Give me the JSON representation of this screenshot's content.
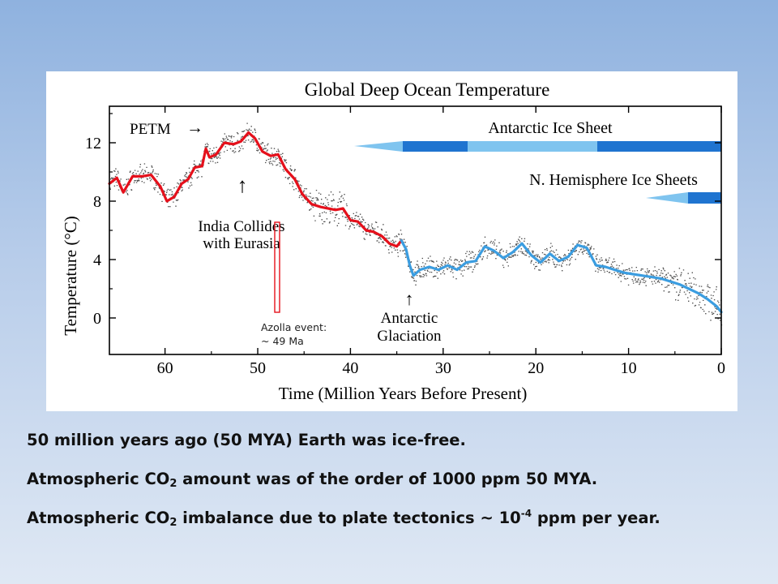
{
  "chart_data": {
    "type": "line",
    "title": "Global Deep Ocean Temperature",
    "xlabel": "Time (Million Years Before Present)",
    "ylabel": "Temperature (°C)",
    "x_reversed": true,
    "xlim": [
      66,
      0
    ],
    "ylim": [
      -2.5,
      14.5
    ],
    "x_ticks": [
      60,
      50,
      40,
      30,
      20,
      10,
      0
    ],
    "y_ticks": [
      0,
      4,
      8,
      12
    ],
    "grid": false,
    "series": [
      {
        "name": "",
        "color": "#e5101b",
        "x": [
          66,
          65.2,
          64.5,
          63.5,
          62.5,
          61.5,
          60.5,
          59.8,
          59,
          58.2,
          57.5,
          56.8,
          56,
          55.6,
          55.2,
          54.5,
          53.6,
          52.6,
          51.8,
          51,
          50.3,
          49.5,
          48.6,
          47.8,
          47,
          46,
          45.2,
          44.2,
          43.2,
          42.4,
          41.6,
          40.8,
          40,
          39.2,
          38.3,
          37.5,
          36.6,
          35.8,
          35,
          34.5
        ],
        "y": [
          9.2,
          9.6,
          8.6,
          9.7,
          9.7,
          9.8,
          9.0,
          8.0,
          8.3,
          9.2,
          9.5,
          10.3,
          10.4,
          11.6,
          11.0,
          11.2,
          12.0,
          11.9,
          12.1,
          12.7,
          12.3,
          11.4,
          11.1,
          11.2,
          10.2,
          9.5,
          8.5,
          7.8,
          7.6,
          7.5,
          7.4,
          7.5,
          6.7,
          6.6,
          6.0,
          5.9,
          5.6,
          5.1,
          4.9,
          5.3
        ]
      },
      {
        "name": "",
        "color": "#3b9de0",
        "x": [
          34.5,
          34.0,
          33.6,
          33.2,
          32.5,
          31.5,
          30.5,
          29.5,
          28.5,
          27.5,
          26.5,
          25.5,
          24.5,
          23.5,
          22.5,
          21.5,
          20.5,
          19.5,
          18.5,
          17.5,
          16.5,
          15.5,
          14.5,
          13.5,
          12.5,
          11.5,
          10.5,
          9.5,
          8.5,
          7.5,
          6.5,
          5.5,
          4.5,
          3.5,
          2.5,
          1.5,
          0.5,
          0
        ],
        "y": [
          5.3,
          4.7,
          3.6,
          2.9,
          3.3,
          3.5,
          3.3,
          3.6,
          3.3,
          3.8,
          3.9,
          4.9,
          4.6,
          4.1,
          4.5,
          5.1,
          4.3,
          3.8,
          4.4,
          3.9,
          4.2,
          5.0,
          4.8,
          3.6,
          3.5,
          3.3,
          3.1,
          3.0,
          2.9,
          2.8,
          2.7,
          2.5,
          2.3,
          2.0,
          1.7,
          1.3,
          0.8,
          0.4
        ]
      }
    ],
    "annotations": {
      "petm": "PETM",
      "petm_arrow": "→",
      "india_arrow": "↑",
      "india_line1": "India Collides",
      "india_line2": "with Eurasia",
      "antarctic_arrow": "↑",
      "antarctic_line1": "Antarctic",
      "antarctic_line2": "Glaciation",
      "azolla_line1": "Azolla event:",
      "azolla_line2": "~ 49 Ma",
      "antarctic_ice_sheet": "Antarctic Ice Sheet",
      "nh_ice_sheets": "N. Hemisphere Ice Sheets"
    }
  },
  "colors": {
    "warm_series": "#e5101b",
    "cold_series": "#3b9de0",
    "ice_light": "#7fc4ef",
    "ice_dark": "#1f74d0",
    "azolla_marker": "#e5101b"
  },
  "captions": {
    "line1": "50 million years ago (50 MYA) Earth was ice-free.",
    "line2_pre": "Atmospheric CO",
    "line2_sub": "2",
    "line2_post": " amount was of the order of 1000 ppm 50 MYA.",
    "line3_pre": "Atmospheric CO",
    "line3_sub": "2",
    "line3_mid": " imbalance due to plate tectonics ~ 10",
    "line3_sup": "-4",
    "line3_post": " ppm per year."
  }
}
